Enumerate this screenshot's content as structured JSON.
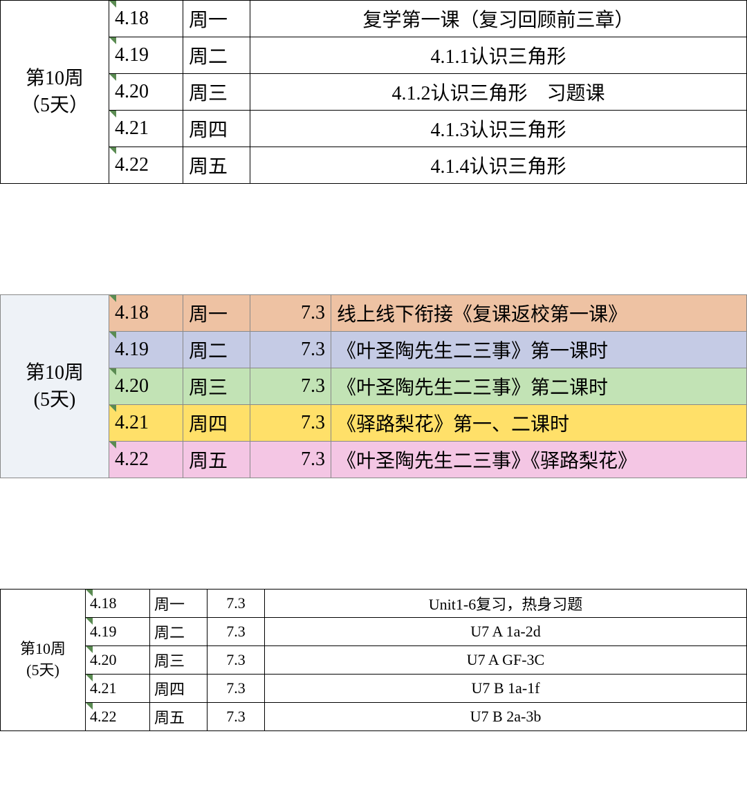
{
  "week_label_line1": "第10周",
  "week_label_line2": "（5天）",
  "week_label_line2_paren": "(5天)",
  "table1": {
    "rows": [
      {
        "date": "4.18",
        "day": "周一",
        "content": "复学第一课（复习回顾前三章）"
      },
      {
        "date": "4.19",
        "day": "周二",
        "content": "4.1.1认识三角形"
      },
      {
        "date": "4.20",
        "day": "周三",
        "content": "4.1.2认识三角形　习题课"
      },
      {
        "date": "4.21",
        "day": "周四",
        "content": "4.1.3认识三角形"
      },
      {
        "date": "4.22",
        "day": "周五",
        "content": "4.1.4认识三角形"
      }
    ]
  },
  "table2": {
    "rows": [
      {
        "date": "4.18",
        "day": "周一",
        "num": "7.3",
        "content": "线上线下衔接《复课返校第一课》"
      },
      {
        "date": "4.19",
        "day": "周二",
        "num": "7.3",
        "content": "《叶圣陶先生二三事》第一课时"
      },
      {
        "date": "4.20",
        "day": "周三",
        "num": "7.3",
        "content": "《叶圣陶先生二三事》第二课时"
      },
      {
        "date": "4.21",
        "day": "周四",
        "num": "7.3",
        "content": "《驿路梨花》第一、二课时"
      },
      {
        "date": "4.22",
        "day": "周五",
        "num": "7.3",
        "content": "《叶圣陶先生二三事》《驿路梨花》"
      }
    ],
    "row_colors": [
      "#eec2a3",
      "#c5cbe5",
      "#c2e3b5",
      "#ffe069",
      "#f4c6e4"
    ],
    "week_bg": "#eef2f7"
  },
  "table3": {
    "rows": [
      {
        "date": "4.18",
        "day": "周一",
        "num": "7.3",
        "content": "Unit1-6复习，热身习题"
      },
      {
        "date": "4.19",
        "day": "周二",
        "num": "7.3",
        "content": "U7 A  1a-2d"
      },
      {
        "date": "4.20",
        "day": "周三",
        "num": "7.3",
        "content": "U7 A  GF-3C"
      },
      {
        "date": "4.21",
        "day": "周四",
        "num": "7.3",
        "content": "U7 B 1a-1f"
      },
      {
        "date": "4.22",
        "day": "周五",
        "num": "7.3",
        "content": "U7 B 2a-3b"
      }
    ]
  },
  "colors": {
    "border": "#000000",
    "background": "#ffffff",
    "tick": "#5a8b52"
  }
}
